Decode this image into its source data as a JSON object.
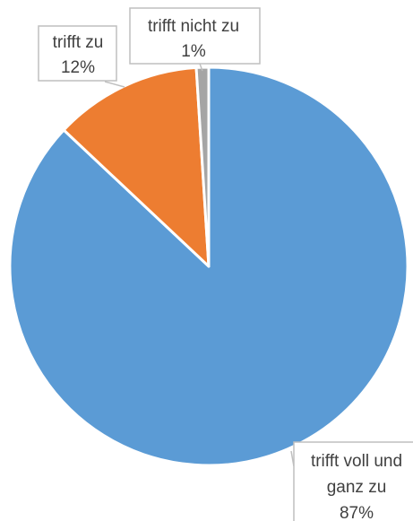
{
  "chart_data": {
    "type": "pie",
    "slices": [
      {
        "label": "trifft voll und ganz zu",
        "value": 87,
        "display": "87%",
        "color": "#5b9bd5"
      },
      {
        "label": "trifft zu",
        "value": 12,
        "display": "12%",
        "color": "#ed7d31"
      },
      {
        "label": "trifft nicht zu",
        "value": 1,
        "display": "1%",
        "color": "#a5a5a5"
      }
    ],
    "start": "12 o'clock",
    "direction": "clockwise",
    "data_labels": "outside with leader lines"
  }
}
